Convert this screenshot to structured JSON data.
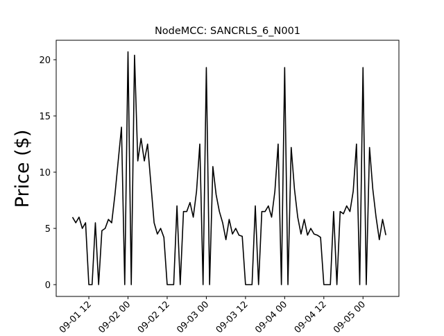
{
  "chart_data": {
    "type": "line",
    "title": "NodeMCC: SANCRLS_6_N001",
    "ylabel": "Price ($)",
    "color": "#000000",
    "x": [
      "09-01 07",
      "09-01 08",
      "09-01 09",
      "09-01 10",
      "09-01 11",
      "09-01 12",
      "09-01 13",
      "09-01 14",
      "09-01 15",
      "09-01 16",
      "09-01 17",
      "09-01 18",
      "09-01 19",
      "09-01 20",
      "09-01 21",
      "09-01 22",
      "09-01 23",
      "09-02 00",
      "09-02 01",
      "09-02 02",
      "09-02 03",
      "09-02 04",
      "09-02 05",
      "09-02 06",
      "09-02 07",
      "09-02 08",
      "09-02 09",
      "09-02 10",
      "09-02 11",
      "09-02 12",
      "09-02 13",
      "09-02 14",
      "09-02 15",
      "09-02 16",
      "09-02 17",
      "09-02 18",
      "09-02 19",
      "09-02 20",
      "09-02 21",
      "09-02 22",
      "09-02 23",
      "09-03 00",
      "09-03 01",
      "09-03 02",
      "09-03 03",
      "09-03 04",
      "09-03 05",
      "09-03 06",
      "09-03 07",
      "09-03 08",
      "09-03 09",
      "09-03 10",
      "09-03 11",
      "09-03 12",
      "09-03 13",
      "09-03 14",
      "09-03 15",
      "09-03 16",
      "09-03 17",
      "09-03 18",
      "09-03 19",
      "09-03 20",
      "09-03 21",
      "09-03 22",
      "09-03 23",
      "09-04 00",
      "09-04 01",
      "09-04 02",
      "09-04 03",
      "09-04 04",
      "09-04 05",
      "09-04 06",
      "09-04 07",
      "09-04 08",
      "09-04 09",
      "09-04 10",
      "09-04 11",
      "09-04 12",
      "09-04 13",
      "09-04 14",
      "09-04 15",
      "09-04 16",
      "09-04 17",
      "09-04 18",
      "09-04 19",
      "09-04 20",
      "09-04 21",
      "09-04 22",
      "09-04 23",
      "09-05 00",
      "09-05 01",
      "09-05 02",
      "09-05 03",
      "09-05 04",
      "09-05 05",
      "09-05 06",
      "09-05 07"
    ],
    "values": [
      6,
      5.5,
      6,
      5,
      5.5,
      0,
      0,
      5.5,
      0,
      4.8,
      5,
      5.8,
      5.5,
      8,
      11,
      14,
      0,
      20.7,
      0,
      20.4,
      11,
      13,
      11,
      12.5,
      9,
      5.5,
      4.5,
      5,
      4.2,
      0,
      0,
      0,
      7,
      0,
      6.5,
      6.5,
      7.3,
      6,
      8.3,
      12.5,
      0,
      19.3,
      0,
      10.5,
      8,
      6.5,
      5.5,
      4,
      5.8,
      4.5,
      5,
      4.4,
      4.3,
      0,
      0,
      0,
      7,
      0,
      6.5,
      6.5,
      7,
      6,
      8.3,
      12.5,
      0,
      19.3,
      0,
      12.2,
      8.5,
      6,
      4.5,
      5.8,
      4.4,
      5,
      4.5,
      4.4,
      4.2,
      0,
      0,
      0,
      6.5,
      0,
      6.5,
      6.3,
      7,
      6.5,
      8.3,
      12.5,
      0,
      19.3,
      0,
      12.2,
      8.5,
      6,
      4,
      5.8,
      4.4
    ],
    "xlim": [
      "09-01 02",
      "09-05 11"
    ],
    "xticks": [
      "09-01 12",
      "09-02 00",
      "09-02 12",
      "09-03 00",
      "09-03 12",
      "09-04 00",
      "09-04 12",
      "09-05 00"
    ],
    "ylim": [
      -1.05,
      21.73
    ],
    "yticks": [
      0,
      5,
      10,
      15,
      20
    ]
  }
}
